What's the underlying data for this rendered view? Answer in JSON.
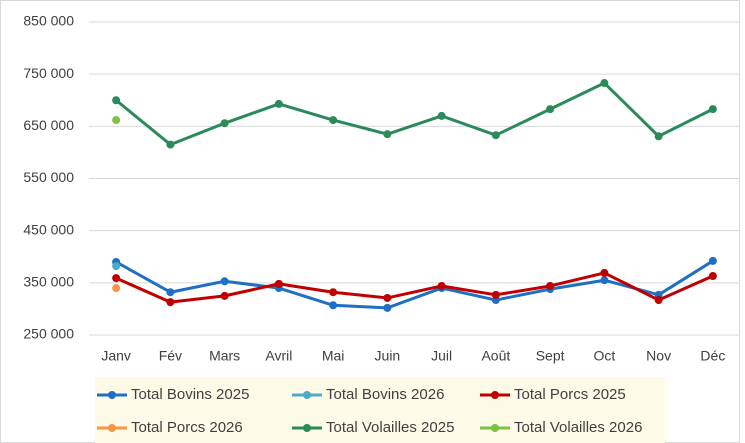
{
  "chart_data": {
    "type": "line",
    "categories": [
      "Janv",
      "Fév",
      "Mars",
      "Avril",
      "Mai",
      "Juin",
      "Juil",
      "Août",
      "Sept",
      "Oct",
      "Nov",
      "Déc"
    ],
    "series": [
      {
        "name": "Total Bovins 2025",
        "color": "#1f6fc5",
        "values": [
          390000,
          332000,
          353000,
          340000,
          307000,
          302000,
          340000,
          317000,
          338000,
          355000,
          327000,
          392000
        ]
      },
      {
        "name": "Total Bovins 2026",
        "color": "#4bacc6",
        "values": [
          382000,
          null,
          null,
          null,
          null,
          null,
          null,
          null,
          null,
          null,
          null,
          null
        ]
      },
      {
        "name": "Total Porcs 2025",
        "color": "#c00000",
        "values": [
          359000,
          313000,
          325000,
          348000,
          332000,
          321000,
          344000,
          327000,
          344000,
          369000,
          317000,
          363000
        ]
      },
      {
        "name": "Total Porcs 2026",
        "color": "#f79646",
        "values": [
          340000,
          null,
          null,
          null,
          null,
          null,
          null,
          null,
          null,
          null,
          null,
          null
        ]
      },
      {
        "name": "Total Volailles 2025",
        "color": "#2a8a5a",
        "values": [
          700000,
          615000,
          656000,
          693000,
          662000,
          635000,
          670000,
          633000,
          683000,
          733000,
          631000,
          683000
        ]
      },
      {
        "name": "Total Volailles 2026",
        "color": "#7dc242",
        "values": [
          662000,
          null,
          null,
          null,
          null,
          null,
          null,
          null,
          null,
          null,
          null,
          null
        ]
      }
    ],
    "ylim": [
      250000,
      850000
    ],
    "yticks": [
      {
        "value": 250000,
        "label": "250 000"
      },
      {
        "value": 350000,
        "label": "350 000"
      },
      {
        "value": 450000,
        "label": "450 000"
      },
      {
        "value": 550000,
        "label": "550 000"
      },
      {
        "value": 650000,
        "label": "650 000"
      },
      {
        "value": 750000,
        "label": "750 000"
      },
      {
        "value": 850000,
        "label": "850 000"
      }
    ],
    "grid": true,
    "legend": "bottom"
  }
}
